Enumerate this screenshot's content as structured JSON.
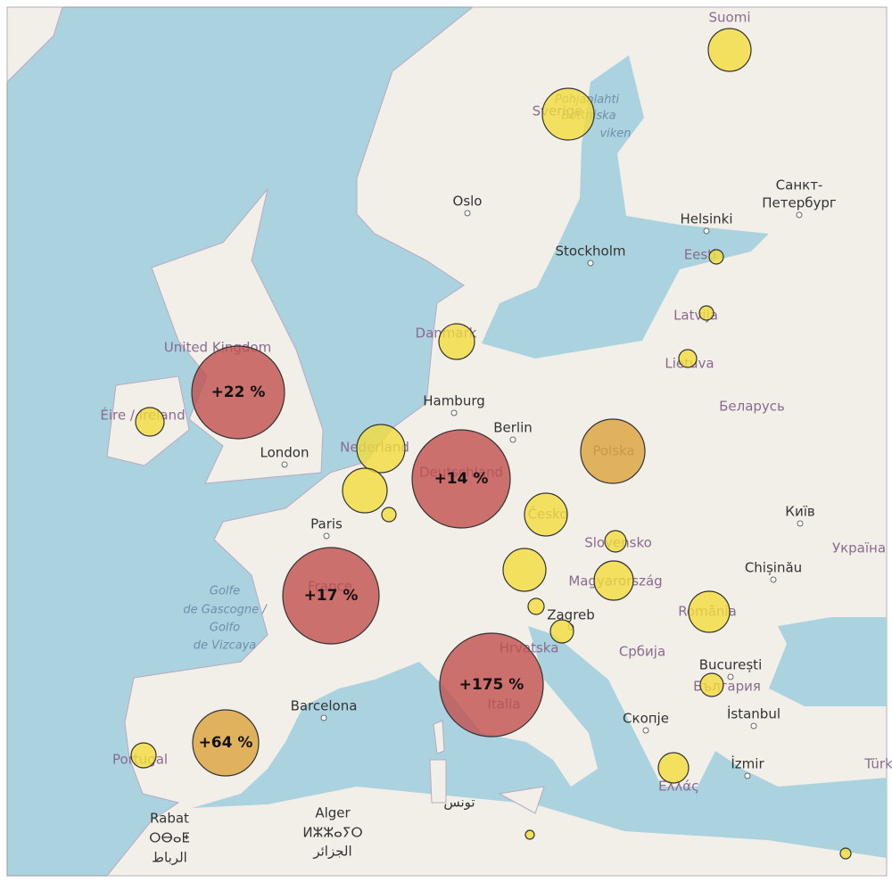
{
  "map": {
    "places": [
      {
        "name": "Suomi",
        "kind": "country"
      },
      {
        "name": "Pohjanlahti",
        "kind": "sea"
      },
      {
        "name": "Bottniska",
        "kind": "sea"
      },
      {
        "name": "viken",
        "kind": "sea"
      },
      {
        "name": "Sverige",
        "kind": "country"
      },
      {
        "name": "Oslo",
        "kind": "city"
      },
      {
        "name": "Санкт-",
        "kind": "city"
      },
      {
        "name": "Петербург",
        "kind": "city"
      },
      {
        "name": "Helsinki",
        "kind": "city"
      },
      {
        "name": "Stockholm",
        "kind": "city"
      },
      {
        "name": "Eesti",
        "kind": "country"
      },
      {
        "name": "Latvija",
        "kind": "country"
      },
      {
        "name": "Lietuva",
        "kind": "country"
      },
      {
        "name": "Danmark",
        "kind": "country"
      },
      {
        "name": "United Kingdom",
        "kind": "country"
      },
      {
        "name": "Éire / Ireland",
        "kind": "country"
      },
      {
        "name": "Hamburg",
        "kind": "city"
      },
      {
        "name": "Berlin",
        "kind": "city"
      },
      {
        "name": "Беларусь",
        "kind": "country"
      },
      {
        "name": "Nederland",
        "kind": "country"
      },
      {
        "name": "Deutschland",
        "kind": "country"
      },
      {
        "name": "Polska",
        "kind": "country"
      },
      {
        "name": "London",
        "kind": "city"
      },
      {
        "name": "Paris",
        "kind": "city"
      },
      {
        "name": "Česko",
        "kind": "country"
      },
      {
        "name": "Київ",
        "kind": "city"
      },
      {
        "name": "Slovensko",
        "kind": "country"
      },
      {
        "name": "Україна",
        "kind": "country"
      },
      {
        "name": "Chișinău",
        "kind": "city"
      },
      {
        "name": "Magyarország",
        "kind": "country"
      },
      {
        "name": "France",
        "kind": "country"
      },
      {
        "name": "Golfe",
        "kind": "sea"
      },
      {
        "name": "de Gascogne /",
        "kind": "sea"
      },
      {
        "name": "Golfo",
        "kind": "sea"
      },
      {
        "name": "de Vizcaya",
        "kind": "sea"
      },
      {
        "name": "Zagreb",
        "kind": "city"
      },
      {
        "name": "România",
        "kind": "country"
      },
      {
        "name": "Hrvatska",
        "kind": "country"
      },
      {
        "name": "Србија",
        "kind": "country"
      },
      {
        "name": "București",
        "kind": "city"
      },
      {
        "name": "Italia",
        "kind": "country"
      },
      {
        "name": "България",
        "kind": "country"
      },
      {
        "name": "Barcelona",
        "kind": "city"
      },
      {
        "name": "Скопје",
        "kind": "city"
      },
      {
        "name": "İstanbul",
        "kind": "city"
      },
      {
        "name": "Portugal",
        "kind": "country"
      },
      {
        "name": "Ελλάς",
        "kind": "country"
      },
      {
        "name": "İzmir",
        "kind": "city"
      },
      {
        "name": "Türk",
        "kind": "country"
      },
      {
        "name": "Rabat",
        "kind": "city"
      },
      {
        "name": "ⵔⴱⴰⵟ",
        "kind": "city"
      },
      {
        "name": "الرباط",
        "kind": "city"
      },
      {
        "name": "Alger",
        "kind": "city"
      },
      {
        "name": "ⵍⵣⵣⴰⵢⵔ",
        "kind": "city"
      },
      {
        "name": "الجزائر",
        "kind": "city"
      },
      {
        "name": "تونس",
        "kind": "city"
      }
    ],
    "markers": [
      {
        "color": "#f2dc3c"
      },
      {
        "color": "#f2dc3c"
      },
      {
        "color": "#f2dc3c"
      },
      {
        "color": "#f2dc3c"
      },
      {
        "color": "#f2dc3c"
      },
      {
        "color": "#f2dc3c"
      },
      {
        "color": "#c0504d",
        "label": "+22 %"
      },
      {
        "color": "#f2dc3c"
      },
      {
        "color": "#f2dc3c"
      },
      {
        "color": "#f2dc3c"
      },
      {
        "color": "#f2dc3c"
      },
      {
        "color": "#c0504d",
        "label": "+14 %"
      },
      {
        "color": "#dba23a"
      },
      {
        "color": "#f2dc3c"
      },
      {
        "color": "#f2dc3c"
      },
      {
        "color": "#f2dc3c"
      },
      {
        "color": "#f2dc3c"
      },
      {
        "color": "#f2dc3c"
      },
      {
        "color": "#f2dc3c"
      },
      {
        "color": "#f2dc3c"
      },
      {
        "color": "#f2dc3c"
      },
      {
        "color": "#c0504d",
        "label": "+17 %"
      },
      {
        "color": "#c0504d",
        "label": "+175 %"
      },
      {
        "color": "#dba23a",
        "label": "+64 %"
      },
      {
        "color": "#f2dc3c"
      },
      {
        "color": "#f2dc3c"
      },
      {
        "color": "#f2dc3c"
      },
      {
        "color": "#f2dc3c"
      }
    ]
  }
}
